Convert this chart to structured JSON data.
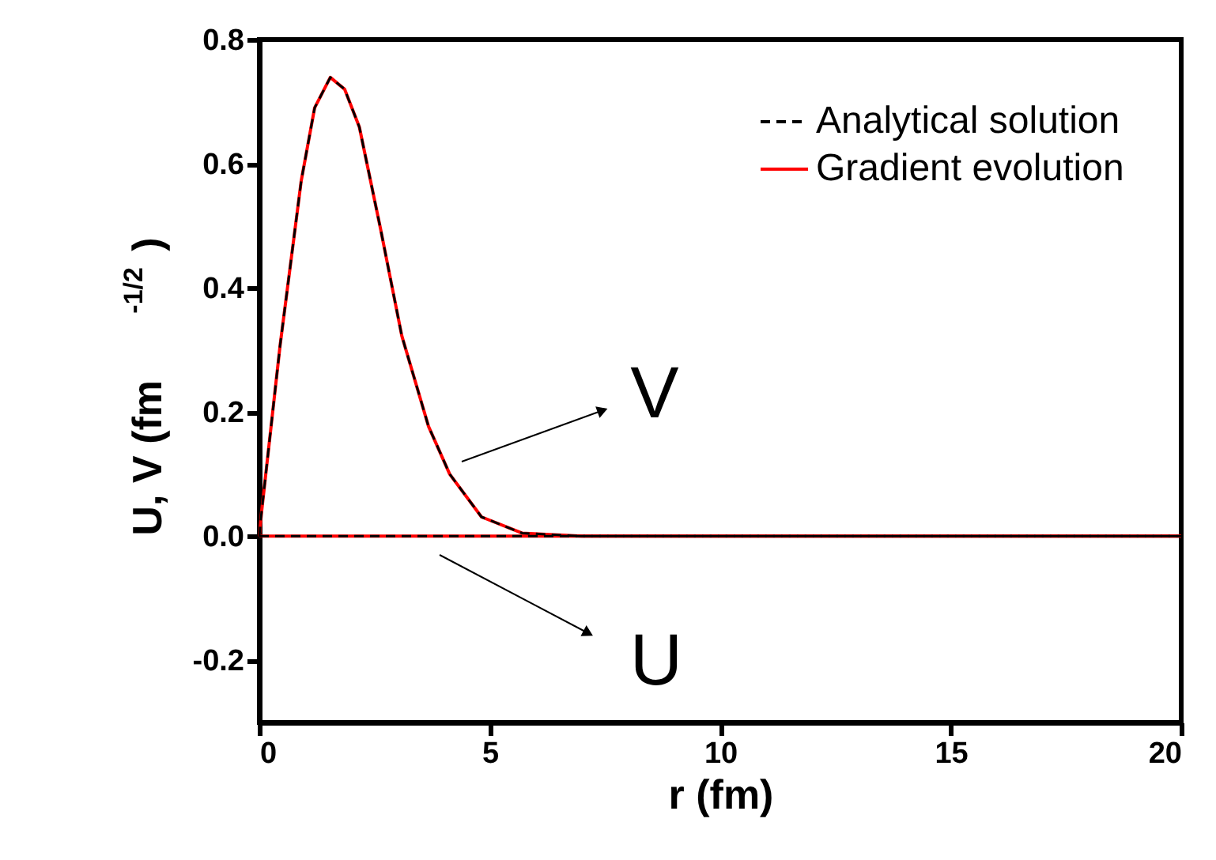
{
  "chart_data": {
    "type": "line",
    "xlabel": "r  (fm)",
    "ylabel": "U, V  (fm$^{-1/2}$)",
    "x": [
      0,
      0.05,
      0.45,
      0.91,
      1.2,
      1.54,
      1.85,
      2.17,
      2.63,
      3.09,
      3.67,
      4.13,
      4.82,
      5.7,
      7,
      10,
      15,
      20
    ],
    "series": [
      {
        "name": "Analytical solution",
        "color": "#000000",
        "line_style": "dashed",
        "values": [
          0,
          0.04,
          0.307,
          0.573,
          0.69,
          0.739,
          0.72,
          0.659,
          0.495,
          0.323,
          0.177,
          0.1,
          0.031,
          0.005,
          0,
          0,
          0,
          0
        ]
      },
      {
        "name": "Gradient evolution",
        "color": "#ff0000",
        "line_style": "solid",
        "values": [
          0,
          0.04,
          0.307,
          0.573,
          0.69,
          0.739,
          0.72,
          0.659,
          0.495,
          0.323,
          0.177,
          0.1,
          0.031,
          0.005,
          0,
          0,
          0,
          0
        ]
      },
      {
        "color": "#000000",
        "line_style": "dashed",
        "values": [
          0,
          0,
          0,
          0,
          0,
          0,
          0,
          0,
          0,
          0,
          0,
          0,
          0,
          0,
          0,
          0,
          0,
          0
        ]
      },
      {
        "color": "#ff0000",
        "line_style": "solid",
        "values": [
          0,
          0,
          0,
          0,
          0,
          0,
          0,
          0,
          0,
          0,
          0,
          0,
          0,
          0,
          0,
          0,
          0,
          0
        ]
      }
    ],
    "xlim": [
      0,
      20
    ],
    "xticks": [
      0,
      5,
      10,
      15,
      20
    ],
    "ylim": [
      -0.3,
      0.8
    ],
    "yticks": [
      -0.2,
      {
        "value": 0,
        "label": "0.0"
      },
      0.2,
      0.4,
      0.6,
      0.8
    ],
    "annotations": [
      "V",
      "U"
    ],
    "grid": false,
    "legend": "top right",
    "marker": "none"
  }
}
